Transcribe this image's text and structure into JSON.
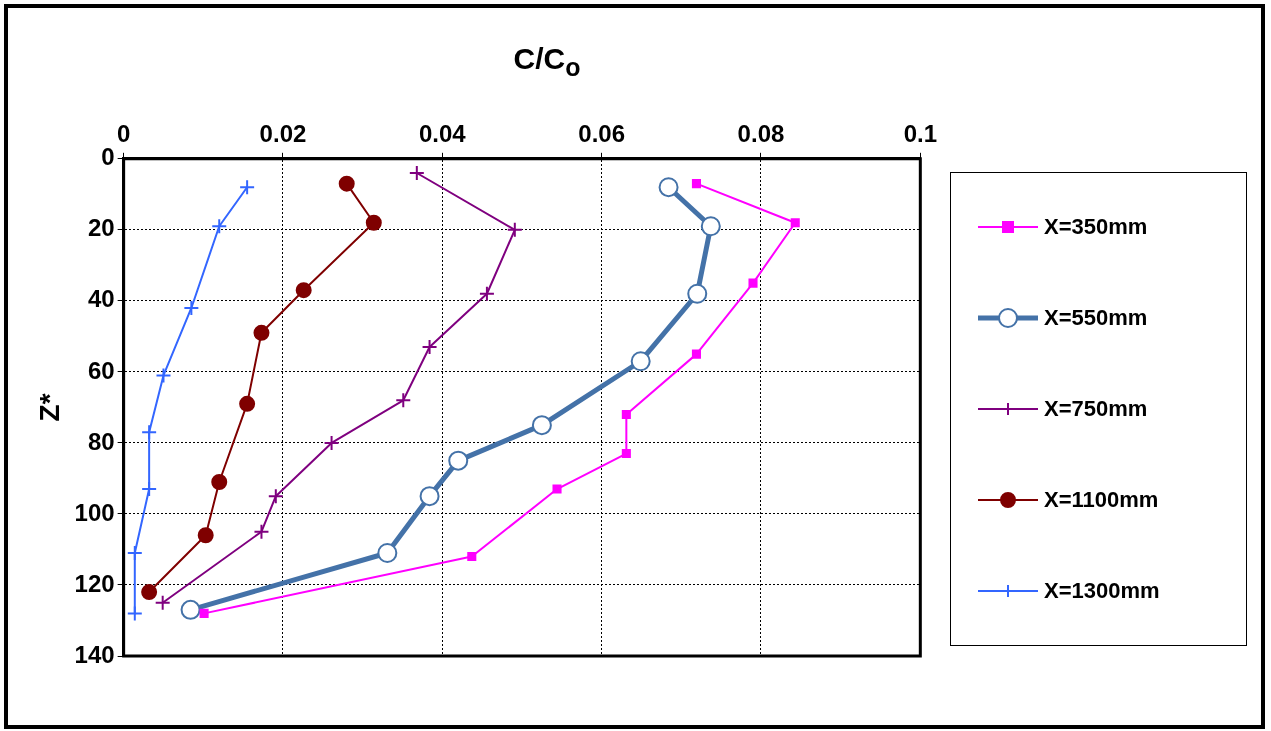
{
  "chart_data": {
    "type": "line",
    "xlabel": "C/C$_{o}$",
    "ylabel": "Z*",
    "xlim": [
      0,
      0.1
    ],
    "xticks": [
      0,
      0.02,
      0.04,
      0.06,
      0.08,
      0.1
    ],
    "ylim": [
      140,
      0
    ],
    "yticks": [
      0,
      20,
      40,
      60,
      80,
      100,
      120,
      140
    ],
    "grid": true,
    "legend": "right",
    "line_style": "solid",
    "series": [
      {
        "name": "X=350mm",
        "color": "#ff00ff",
        "marker": "square",
        "x": [
          0.0719,
          0.0843,
          0.079,
          0.0719,
          0.0631,
          0.0631,
          0.0544,
          0.0437,
          0.0101
        ],
        "values": [
          7,
          18,
          35,
          55,
          72,
          83,
          93,
          112,
          128
        ]
      },
      {
        "name": "X=550mm",
        "color": "#4472a8",
        "marker": "circle",
        "x": [
          0.0684,
          0.0737,
          0.072,
          0.0649,
          0.0525,
          0.042,
          0.0384,
          0.0331,
          0.0084
        ],
        "values": [
          8,
          19,
          38,
          57,
          75,
          85,
          95,
          111,
          127
        ]
      },
      {
        "name": "X=750mm",
        "color": "#7f007f",
        "marker": "cross",
        "x": [
          0.0368,
          0.0491,
          0.0456,
          0.0384,
          0.0351,
          0.0261,
          0.0191,
          0.0173,
          0.0049
        ],
        "values": [
          4,
          20,
          38,
          53,
          68,
          80,
          95,
          105,
          125
        ]
      },
      {
        "name": "X=1100mm",
        "color": "#7f0000",
        "marker": "circle",
        "x": [
          0.028,
          0.0314,
          0.0226,
          0.0173,
          0.0155,
          0.012,
          0.0103,
          0.0032
        ],
        "values": [
          7,
          18,
          37,
          49,
          69,
          91,
          106,
          122
        ]
      },
      {
        "name": "X=1300mm",
        "color": "#3366ff",
        "marker": "cross",
        "x": [
          0.0155,
          0.012,
          0.0085,
          0.005,
          0.0032,
          0.0032,
          0.0014,
          0.0014
        ],
        "values": [
          8,
          19,
          42,
          61,
          77,
          93,
          111,
          128
        ]
      }
    ]
  }
}
